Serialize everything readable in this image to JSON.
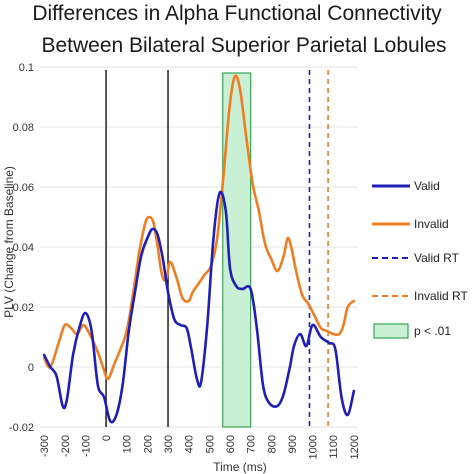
{
  "chart_data": {
    "type": "line",
    "title_lines": [
      "Differences in Alpha Functional Connectivity",
      "Between Bilateral Superior Parietal Lobules"
    ],
    "xlabel": "Time (ms)",
    "ylabel": "PLV (Change from Baseline)",
    "xlim": [
      -320,
      1220
    ],
    "ylim": [
      -0.02,
      0.1
    ],
    "x_ticks": [
      "-300",
      "-200",
      "-100",
      "0",
      "100",
      "200",
      "300",
      "400",
      "500",
      "600",
      "700",
      "800",
      "900",
      "1000",
      "1100",
      "1200"
    ],
    "y_ticks": [
      "-0.02",
      "0",
      "0.02",
      "0.04",
      "0.06",
      "0.08",
      "0.1"
    ],
    "grid": "horizontal",
    "legend_position": "right",
    "vertical_markers": [
      0,
      300
    ],
    "significance_band": {
      "x_start": 565,
      "x_end": 700,
      "label": "p < .01",
      "color": "#c9efd4"
    },
    "reaction_times": [
      {
        "name": "Valid RT",
        "x": 985,
        "color": "#1f1fb8"
      },
      {
        "name": "Invalid RT",
        "x": 1075,
        "color": "#ef7d22"
      }
    ],
    "series": [
      {
        "name": "Valid",
        "color": "#1f1fb8",
        "points": [
          [
            -300,
            0.004
          ],
          [
            -270,
            0.0
          ],
          [
            -240,
            -0.003
          ],
          [
            -210,
            -0.013
          ],
          [
            -190,
            -0.011
          ],
          [
            -160,
            0.004
          ],
          [
            -130,
            0.013
          ],
          [
            -100,
            0.018
          ],
          [
            -70,
            0.012
          ],
          [
            -40,
            -0.006
          ],
          [
            -10,
            -0.01
          ],
          [
            20,
            -0.018
          ],
          [
            50,
            -0.016
          ],
          [
            80,
            -0.006
          ],
          [
            110,
            0.012
          ],
          [
            140,
            0.025
          ],
          [
            170,
            0.037
          ],
          [
            200,
            0.043
          ],
          [
            225,
            0.046
          ],
          [
            250,
            0.044
          ],
          [
            275,
            0.036
          ],
          [
            300,
            0.025
          ],
          [
            330,
            0.016
          ],
          [
            360,
            0.014
          ],
          [
            390,
            0.013
          ],
          [
            410,
            0.007
          ],
          [
            440,
            -0.004
          ],
          [
            460,
            -0.005
          ],
          [
            490,
            0.014
          ],
          [
            520,
            0.043
          ],
          [
            550,
            0.058
          ],
          [
            580,
            0.052
          ],
          [
            600,
            0.033
          ],
          [
            630,
            0.027
          ],
          [
            660,
            0.026
          ],
          [
            700,
            0.026
          ],
          [
            730,
            0.013
          ],
          [
            760,
            -0.006
          ],
          [
            790,
            -0.012
          ],
          [
            830,
            -0.013
          ],
          [
            860,
            -0.009
          ],
          [
            890,
            0.0
          ],
          [
            910,
            0.007
          ],
          [
            940,
            0.011
          ],
          [
            970,
            0.007
          ],
          [
            1000,
            0.014
          ],
          [
            1040,
            0.01
          ],
          [
            1080,
            0.008
          ],
          [
            1110,
            0.006
          ],
          [
            1140,
            -0.01
          ],
          [
            1170,
            -0.016
          ],
          [
            1200,
            -0.008
          ]
        ]
      },
      {
        "name": "Invalid",
        "color": "#ef7d22",
        "points": [
          [
            -300,
            0.003
          ],
          [
            -270,
            0.0
          ],
          [
            -230,
            0.008
          ],
          [
            -200,
            0.014
          ],
          [
            -170,
            0.013
          ],
          [
            -140,
            0.011
          ],
          [
            -110,
            0.014
          ],
          [
            -80,
            0.011
          ],
          [
            -40,
            0.005
          ],
          [
            -10,
            -0.001
          ],
          [
            10,
            -0.004
          ],
          [
            40,
            0.001
          ],
          [
            70,
            0.006
          ],
          [
            100,
            0.012
          ],
          [
            130,
            0.024
          ],
          [
            160,
            0.038
          ],
          [
            190,
            0.048
          ],
          [
            210,
            0.05
          ],
          [
            230,
            0.048
          ],
          [
            250,
            0.04
          ],
          [
            270,
            0.031
          ],
          [
            290,
            0.029
          ],
          [
            310,
            0.035
          ],
          [
            340,
            0.03
          ],
          [
            370,
            0.023
          ],
          [
            400,
            0.022
          ],
          [
            420,
            0.025
          ],
          [
            450,
            0.028
          ],
          [
            480,
            0.031
          ],
          [
            510,
            0.034
          ],
          [
            540,
            0.044
          ],
          [
            570,
            0.065
          ],
          [
            600,
            0.088
          ],
          [
            625,
            0.097
          ],
          [
            650,
            0.092
          ],
          [
            680,
            0.076
          ],
          [
            710,
            0.061
          ],
          [
            740,
            0.052
          ],
          [
            770,
            0.041
          ],
          [
            800,
            0.036
          ],
          [
            830,
            0.032
          ],
          [
            860,
            0.037
          ],
          [
            880,
            0.043
          ],
          [
            900,
            0.039
          ],
          [
            920,
            0.032
          ],
          [
            950,
            0.024
          ],
          [
            980,
            0.021
          ],
          [
            1010,
            0.017
          ],
          [
            1040,
            0.013
          ],
          [
            1070,
            0.012
          ],
          [
            1100,
            0.011
          ],
          [
            1130,
            0.011
          ],
          [
            1150,
            0.014
          ],
          [
            1170,
            0.02
          ],
          [
            1200,
            0.022
          ]
        ]
      }
    ]
  }
}
